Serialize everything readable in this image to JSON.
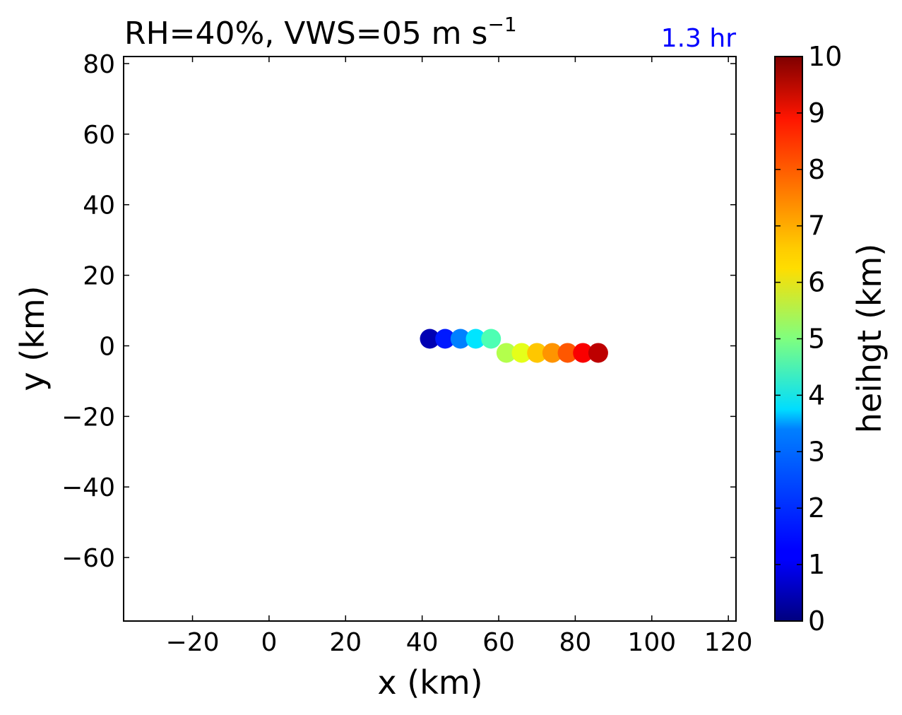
{
  "chart_data": {
    "type": "scatter",
    "title_main": "RH=40%, VWS=05 m s",
    "title_sup": "−1",
    "title_right": "1.3 hr",
    "title_right_color": "#0000ff",
    "xlabel": "x (km)",
    "ylabel": "y (km)",
    "xlim": [
      -38,
      122
    ],
    "ylim": [
      -78,
      82
    ],
    "xticks": [
      -20,
      0,
      20,
      40,
      60,
      80,
      100,
      120
    ],
    "yticks": [
      -60,
      -40,
      -20,
      0,
      20,
      40,
      60,
      80
    ],
    "grid": false,
    "colormap": "jet",
    "colorbar": {
      "label": "heihgt (km)",
      "range": [
        0,
        10
      ],
      "ticks": [
        0,
        1,
        2,
        3,
        4,
        5,
        6,
        7,
        8,
        9,
        10
      ]
    },
    "points": [
      {
        "x": 42,
        "y": 2,
        "height": 0.5
      },
      {
        "x": 46,
        "y": 2,
        "height": 1.5
      },
      {
        "x": 50,
        "y": 2,
        "height": 2.5
      },
      {
        "x": 54,
        "y": 2,
        "height": 3.5
      },
      {
        "x": 58,
        "y": 2,
        "height": 4.5
      },
      {
        "x": 62,
        "y": -2,
        "height": 5.5
      },
      {
        "x": 66,
        "y": -2,
        "height": 6.0
      },
      {
        "x": 70,
        "y": -2,
        "height": 6.8
      },
      {
        "x": 74,
        "y": -2,
        "height": 7.3
      },
      {
        "x": 78,
        "y": -2,
        "height": 7.9
      },
      {
        "x": 82,
        "y": -2,
        "height": 8.8
      },
      {
        "x": 86,
        "y": -2,
        "height": 9.4
      }
    ]
  }
}
